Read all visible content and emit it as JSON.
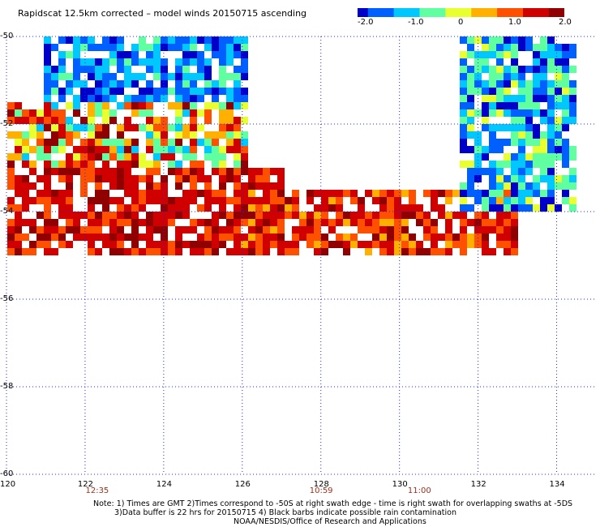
{
  "title": "Rapidscat 12.5km corrected – model winds 20150715 ascending",
  "colorbar": {
    "ticks": [
      "-2.0",
      "-1.0",
      "0",
      "1.0",
      "2.0"
    ],
    "colors": [
      "#0000c8",
      "#0060ff",
      "#00c8ff",
      "#60ffa0",
      "#e8ff30",
      "#ffb000",
      "#ff5000",
      "#d00000",
      "#900000"
    ]
  },
  "map": {
    "lon_labels": [
      "120",
      "122",
      "124",
      "126",
      "128",
      "130",
      "132",
      "134"
    ],
    "lat_labels": [
      "-50",
      "-52",
      "-54",
      "-56",
      "-58",
      "-60"
    ],
    "time_labels": [
      "12:35",
      "10:59",
      "11:00"
    ]
  },
  "notes": [
    "Note: 1) Times are GMT 2)Times correspond to -50S at right swath edge - time is right swath for overlapping swaths at -5DS",
    "3)Data buffer is 22 hrs for 20150715 4) Black barbs indicate possible rain contamination",
    "NOAA/NESDIS/Office of Research and Applications"
  ],
  "chart_data": {
    "type": "heatmap",
    "title": "Rapidscat 12.5km corrected – model winds 20150715 ascending",
    "variable": "corrected minus model wind speed difference",
    "colorscale_range": [
      -2.0,
      2.0
    ],
    "xlim": [
      120,
      135
    ],
    "ylim": [
      -60,
      -50
    ],
    "x_ticks": [
      120,
      122,
      124,
      126,
      128,
      130,
      132,
      134
    ],
    "y_ticks": [
      -50,
      -52,
      -54,
      -56,
      -58,
      -60
    ],
    "regions": [
      {
        "lon": [
          121,
          126
        ],
        "lat": [
          -51.5,
          -50
        ],
        "value_range": [
          -2.0,
          -0.5
        ]
      },
      {
        "lon": [
          120,
          126
        ],
        "lat": [
          -53,
          -51.5
        ],
        "value_range": [
          -1.0,
          2.0
        ]
      },
      {
        "lon": [
          120,
          127
        ],
        "lat": [
          -55,
          -53
        ],
        "value_range": [
          1.0,
          2.0
        ]
      },
      {
        "lon": [
          126,
          133
        ],
        "lat": [
          -55,
          -53.5
        ],
        "value_range": [
          0.5,
          2.0
        ]
      },
      {
        "lon": [
          131.5,
          134.5
        ],
        "lat": [
          -54,
          -50
        ],
        "value_range": [
          -2.0,
          0.0
        ]
      }
    ]
  }
}
